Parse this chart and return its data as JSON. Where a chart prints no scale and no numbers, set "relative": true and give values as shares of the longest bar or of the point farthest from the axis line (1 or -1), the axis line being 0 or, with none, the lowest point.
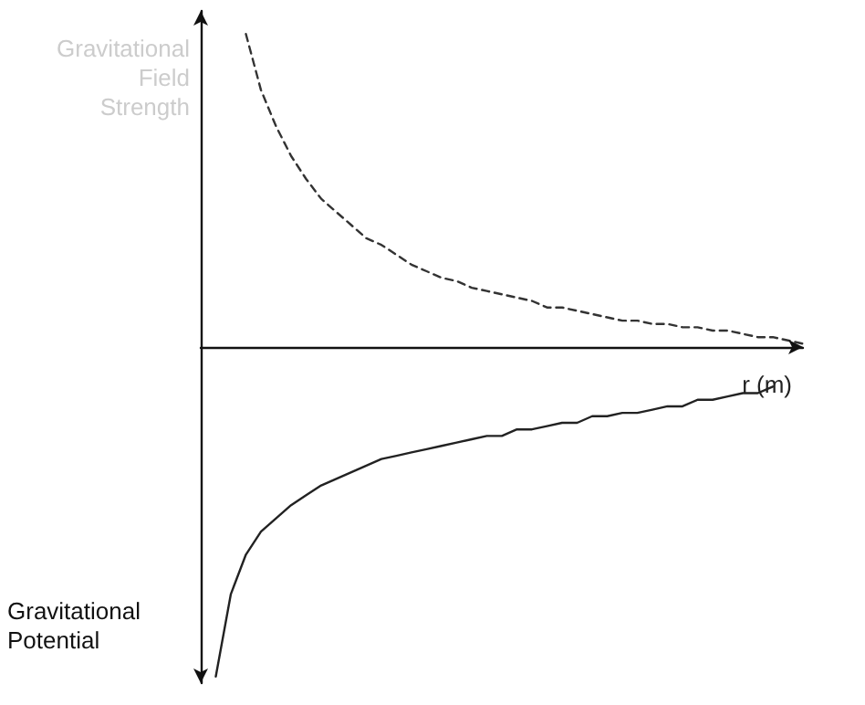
{
  "chart_data": {
    "type": "line",
    "relative": true,
    "xlabel": "r (m)",
    "marker": "none",
    "grid": false,
    "legend": false,
    "categories": [
      null,
      null,
      null,
      null,
      null,
      null,
      null,
      null,
      null,
      null,
      null,
      null,
      null,
      null,
      null,
      null,
      null,
      null,
      null,
      null,
      null,
      null,
      null,
      null,
      null,
      null,
      null,
      null,
      null,
      null,
      null,
      null,
      null,
      null,
      null,
      null,
      null,
      null,
      null,
      null,
      null
    ],
    "series": [
      {
        "name": "Gravitational Field Strength",
        "color": "#333333",
        "line_style": "dashed",
        "values": [
          null,
          null,
          null,
          0.95,
          0.78,
          0.67,
          0.58,
          0.51,
          0.45,
          0.41,
          0.37,
          0.33,
          0.31,
          0.28,
          0.25,
          0.23,
          0.21,
          0.2,
          0.18,
          0.17,
          0.16,
          0.15,
          0.14,
          0.12,
          0.12,
          0.11,
          0.1,
          0.09,
          0.08,
          0.08,
          0.07,
          0.07,
          0.06,
          0.06,
          0.05,
          0.05,
          0.04,
          0.03,
          0.03,
          0.02,
          0.01
        ]
      },
      {
        "name": "Gravitational Potential",
        "color": "#222222",
        "line_style": "solid",
        "values": [
          null,
          -1,
          -0.75,
          -0.63,
          -0.56,
          -0.52,
          -0.48,
          -0.45,
          -0.42,
          -0.4,
          -0.38,
          -0.36,
          -0.34,
          -0.33,
          -0.32,
          -0.31,
          -0.3,
          -0.29,
          -0.28,
          -0.27,
          -0.27,
          -0.25,
          -0.25,
          -0.24,
          -0.23,
          -0.23,
          -0.21,
          -0.21,
          -0.2,
          -0.2,
          -0.19,
          -0.18,
          -0.18,
          -0.16,
          -0.16,
          -0.15,
          -0.14,
          -0.14,
          -0.12,
          null,
          null
        ]
      }
    ]
  }
}
